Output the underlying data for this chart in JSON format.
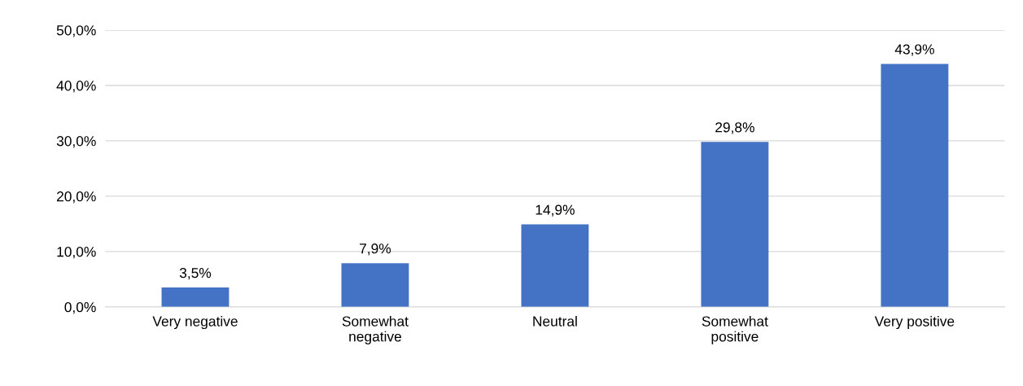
{
  "chart_data": {
    "type": "bar",
    "categories": [
      "Very negative",
      "Somewhat negative",
      "Neutral",
      "Somewhat positive",
      "Very positive"
    ],
    "values": [
      3.5,
      7.9,
      14.9,
      29.8,
      43.9
    ],
    "value_labels": [
      "3,5%",
      "7,9%",
      "14,9%",
      "29,8%",
      "43,9%"
    ],
    "color": "#4472c4",
    "ylim": [
      0,
      50
    ],
    "yticks": [
      {
        "value": 0,
        "label": "0,0%"
      },
      {
        "value": 10,
        "label": "10,0%"
      },
      {
        "value": 20,
        "label": "20,0%"
      },
      {
        "value": 30,
        "label": "30,0%"
      },
      {
        "value": 40,
        "label": "40,0%"
      },
      {
        "value": 50,
        "label": "50,0%"
      }
    ],
    "grid": "y",
    "legend": false
  }
}
